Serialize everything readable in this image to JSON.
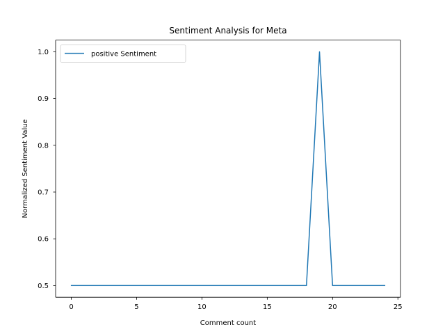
{
  "chart_data": {
    "type": "line",
    "title": "Sentiment Analysis for Meta",
    "xlabel": "Comment count",
    "ylabel": "Normalized Sentiment Value",
    "xlim": [
      -1.2,
      25.2
    ],
    "ylim": [
      0.475,
      1.025
    ],
    "xticks": [
      0,
      5,
      10,
      15,
      20,
      25
    ],
    "xtick_labels": [
      "0",
      "5",
      "10",
      "15",
      "20",
      "25"
    ],
    "yticks": [
      0.5,
      0.6,
      0.7,
      0.8,
      0.9,
      1.0
    ],
    "ytick_labels": [
      "0.5",
      "0.6",
      "0.7",
      "0.8",
      "0.9",
      "1.0"
    ],
    "grid": false,
    "legend_position": "top-left",
    "series": [
      {
        "name": "positive Sentiment",
        "color": "#1f77b4",
        "x": [
          0,
          1,
          2,
          3,
          4,
          5,
          6,
          7,
          8,
          9,
          10,
          11,
          12,
          13,
          14,
          15,
          16,
          17,
          18,
          19,
          20,
          21,
          22,
          23,
          24
        ],
        "values": [
          0.5,
          0.5,
          0.5,
          0.5,
          0.5,
          0.5,
          0.5,
          0.5,
          0.5,
          0.5,
          0.5,
          0.5,
          0.5,
          0.5,
          0.5,
          0.5,
          0.5,
          0.5,
          0.5,
          1.0,
          0.5,
          0.5,
          0.5,
          0.5,
          0.5
        ]
      }
    ]
  }
}
